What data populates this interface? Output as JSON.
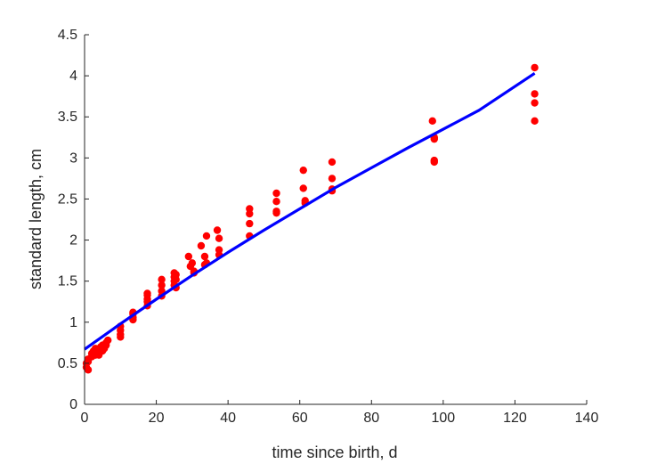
{
  "chart_data": {
    "type": "scatter",
    "title": "",
    "xlabel": "time since birth, d",
    "ylabel": "standard length, cm",
    "xlim": [
      0,
      140
    ],
    "ylim": [
      0,
      4.5
    ],
    "xticks": [
      0,
      20,
      40,
      60,
      80,
      100,
      120,
      140
    ],
    "yticks": [
      0,
      0.5,
      1,
      1.5,
      2,
      2.5,
      3,
      3.5,
      4,
      4.5
    ],
    "xtick_labels": [
      "0",
      "20",
      "40",
      "60",
      "80",
      "100",
      "120",
      "140"
    ],
    "ytick_labels": [
      "0",
      "0.5",
      "1",
      "1.5",
      "2",
      "2.5",
      "3",
      "3.5",
      "4",
      "4.5"
    ],
    "grid": false,
    "colors": {
      "points": "#ff0000",
      "fit": "#0000ff",
      "axis": "#262626"
    },
    "series": [
      {
        "kind": "scatter",
        "x": [
          0.5,
          0.5,
          1,
          1,
          1,
          2,
          2,
          2.5,
          3,
          3,
          3.5,
          4,
          4.5,
          5,
          5,
          5.5,
          6,
          6,
          6.5,
          10,
          10,
          10,
          10,
          13.5,
          13.5,
          13.5,
          13.5,
          17.5,
          17.5,
          17.5,
          17.5,
          17.5,
          21.5,
          21.5,
          21.5,
          21.5,
          25,
          25,
          25,
          25,
          25.5,
          25.5,
          25.5,
          29,
          29.5,
          30,
          30.5,
          30.5,
          32.5,
          33.5,
          33.5,
          34,
          34,
          37,
          37.5,
          37.5,
          37.5,
          46,
          46,
          46,
          46,
          53.5,
          53.5,
          53.5,
          53.5,
          61,
          61,
          61.5,
          61.5,
          69,
          69,
          69,
          69,
          97,
          97.5,
          97.5,
          97.5,
          97.5,
          125.5,
          125.5,
          125.5,
          125.5
        ],
        "y": [
          0.45,
          0.5,
          0.42,
          0.52,
          0.55,
          0.58,
          0.62,
          0.65,
          0.6,
          0.68,
          0.65,
          0.6,
          0.7,
          0.65,
          0.72,
          0.68,
          0.72,
          0.75,
          0.78,
          0.82,
          0.85,
          0.9,
          0.95,
          1.03,
          1.06,
          1.1,
          1.12,
          1.2,
          1.25,
          1.28,
          1.33,
          1.35,
          1.32,
          1.38,
          1.45,
          1.52,
          1.45,
          1.5,
          1.55,
          1.6,
          1.42,
          1.52,
          1.58,
          1.8,
          1.68,
          1.72,
          1.62,
          1.6,
          1.93,
          1.8,
          1.7,
          2.05,
          1.72,
          2.12,
          2.02,
          1.88,
          1.82,
          2.38,
          2.32,
          2.2,
          2.05,
          2.57,
          2.47,
          2.35,
          2.33,
          2.85,
          2.63,
          2.48,
          2.45,
          2.95,
          2.75,
          2.62,
          2.6,
          3.45,
          3.25,
          3.23,
          2.97,
          2.95,
          4.1,
          3.78,
          3.67,
          3.45
        ]
      },
      {
        "kind": "line",
        "x": [
          0,
          10,
          20,
          30,
          40,
          50,
          60,
          70,
          80,
          90,
          100,
          110,
          125.5
        ],
        "y": [
          0.67,
          0.98,
          1.28,
          1.57,
          1.85,
          2.12,
          2.38,
          2.64,
          2.88,
          3.12,
          3.35,
          3.58,
          4.03
        ]
      }
    ]
  }
}
